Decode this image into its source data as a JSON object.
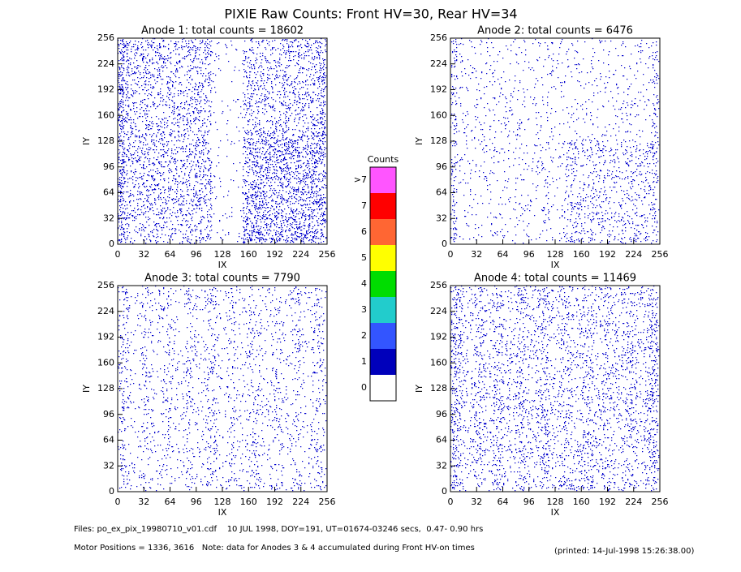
{
  "title": "PIXIE Raw Counts:  Front HV=30, Rear HV=34",
  "chart_data": [
    {
      "type": "image",
      "title": "Anode 1: total counts = 18602",
      "xlabel": "IX",
      "ylabel": "IY",
      "xlim": [
        0,
        256
      ],
      "ylim": [
        0,
        256
      ],
      "xticks": [
        0,
        32,
        64,
        96,
        128,
        160,
        192,
        224,
        256
      ],
      "yticks": [
        0,
        32,
        64,
        96,
        128,
        160,
        192,
        224,
        256
      ]
    },
    {
      "type": "image",
      "title": "Anode 2: total counts = 6476",
      "xlabel": "IX",
      "ylabel": "IY",
      "xlim": [
        0,
        256
      ],
      "ylim": [
        0,
        256
      ],
      "xticks": [
        0,
        32,
        64,
        96,
        128,
        160,
        192,
        224,
        256
      ],
      "yticks": [
        0,
        32,
        64,
        96,
        128,
        160,
        192,
        224,
        256
      ]
    },
    {
      "type": "image",
      "title": "Anode 3: total counts = 7790",
      "xlabel": "IX",
      "ylabel": "IY",
      "xlim": [
        0,
        256
      ],
      "ylim": [
        0,
        256
      ],
      "xticks": [
        0,
        32,
        64,
        96,
        128,
        160,
        192,
        224,
        256
      ],
      "yticks": [
        0,
        32,
        64,
        96,
        128,
        160,
        192,
        224,
        256
      ]
    },
    {
      "type": "image",
      "title": "Anode 4: total counts = 11469",
      "xlabel": "IX",
      "ylabel": "IY",
      "xlim": [
        0,
        256
      ],
      "ylim": [
        0,
        256
      ],
      "xticks": [
        0,
        32,
        64,
        96,
        128,
        160,
        192,
        224,
        256
      ],
      "yticks": [
        0,
        32,
        64,
        96,
        128,
        160,
        192,
        224,
        256
      ]
    }
  ],
  "colorbar": {
    "title": "Counts",
    "levels": [
      {
        "label": ">7",
        "color": "#ff55ff"
      },
      {
        "label": "7",
        "color": "#ff0000"
      },
      {
        "label": "6",
        "color": "#ff6633"
      },
      {
        "label": "5",
        "color": "#ffff00"
      },
      {
        "label": "4",
        "color": "#00dd00"
      },
      {
        "label": "3",
        "color": "#22cccc"
      },
      {
        "label": "2",
        "color": "#3355ff"
      },
      {
        "label": "1",
        "color": "#0000bb"
      },
      {
        "label": "0",
        "color": "#ffffff"
      }
    ]
  },
  "footer": {
    "files": "Files: po_ex_pix_19980710_v01.cdf    10 JUL 1998, DOY=191, UT=01674-03246 secs,  0.47- 0.90 hrs",
    "motor": "Motor Positions = 1336, 3616   Note: data for Anodes 3 & 4 accumulated during Front HV-on times",
    "printed": "(printed: 14-Jul-1998 15:26:38.00)"
  }
}
